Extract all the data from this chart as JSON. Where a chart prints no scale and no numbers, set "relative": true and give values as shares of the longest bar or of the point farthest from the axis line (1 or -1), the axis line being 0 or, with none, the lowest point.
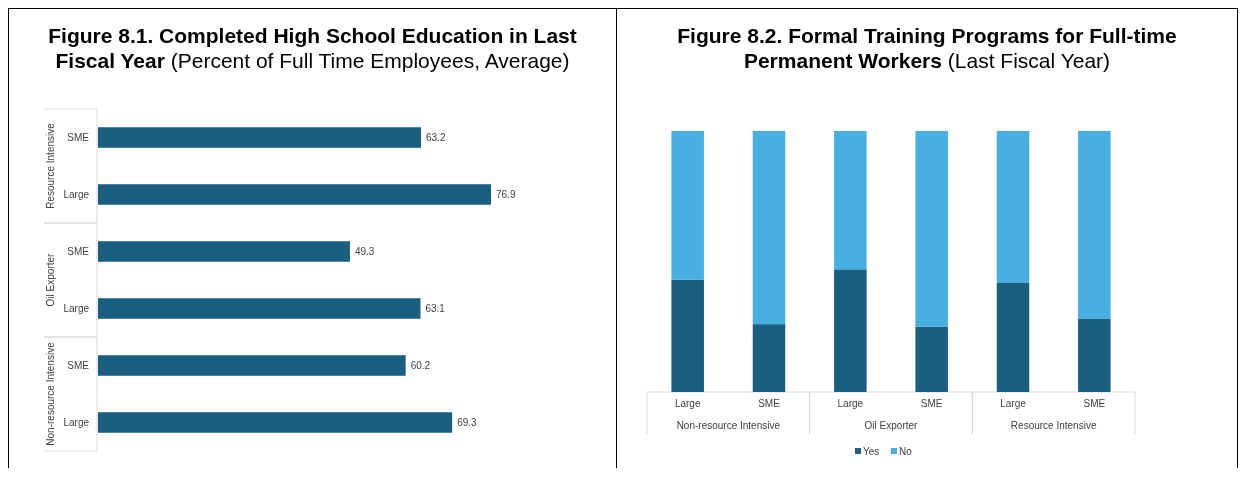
{
  "chart_data": [
    {
      "type": "bar",
      "orientation": "horizontal",
      "title": "Figure 8.1. Completed High School Education in Last Fiscal Year",
      "subtitle": "(Percent of Full Time Employees, Average)",
      "categories": [
        "SME",
        "Large",
        "SME",
        "Large",
        "SME",
        "Large"
      ],
      "values": [
        63.2,
        76.9,
        49.3,
        63.1,
        60.2,
        69.3
      ],
      "color": "#1b5f80",
      "data_labels": true,
      "annotations": [
        "Resource Intensive",
        "Oil Exporter",
        "Non-resource Intensive"
      ]
    },
    {
      "type": "bar",
      "stacked": true,
      "relative": true,
      "title": "Figure 8.2. Formal Training Programs for Full-time Permanent Workers",
      "subtitle": "(Last Fiscal Year)",
      "categories": [
        "Large",
        "SME",
        "Large",
        "SME",
        "Large",
        "SME"
      ],
      "series": [
        {
          "name": "Yes",
          "color": "#1b5f80",
          "values": [
            0.43,
            0.26,
            0.47,
            0.25,
            0.42,
            0.28
          ]
        },
        {
          "name": "No",
          "color": "#47b0e0",
          "values": [
            0.57,
            0.74,
            0.53,
            0.75,
            0.58,
            0.72
          ]
        }
      ],
      "legend": "bottom",
      "annotations": [
        "Non-resource Intensive",
        "Oil Exporter",
        "Resource Intensive"
      ]
    }
  ]
}
